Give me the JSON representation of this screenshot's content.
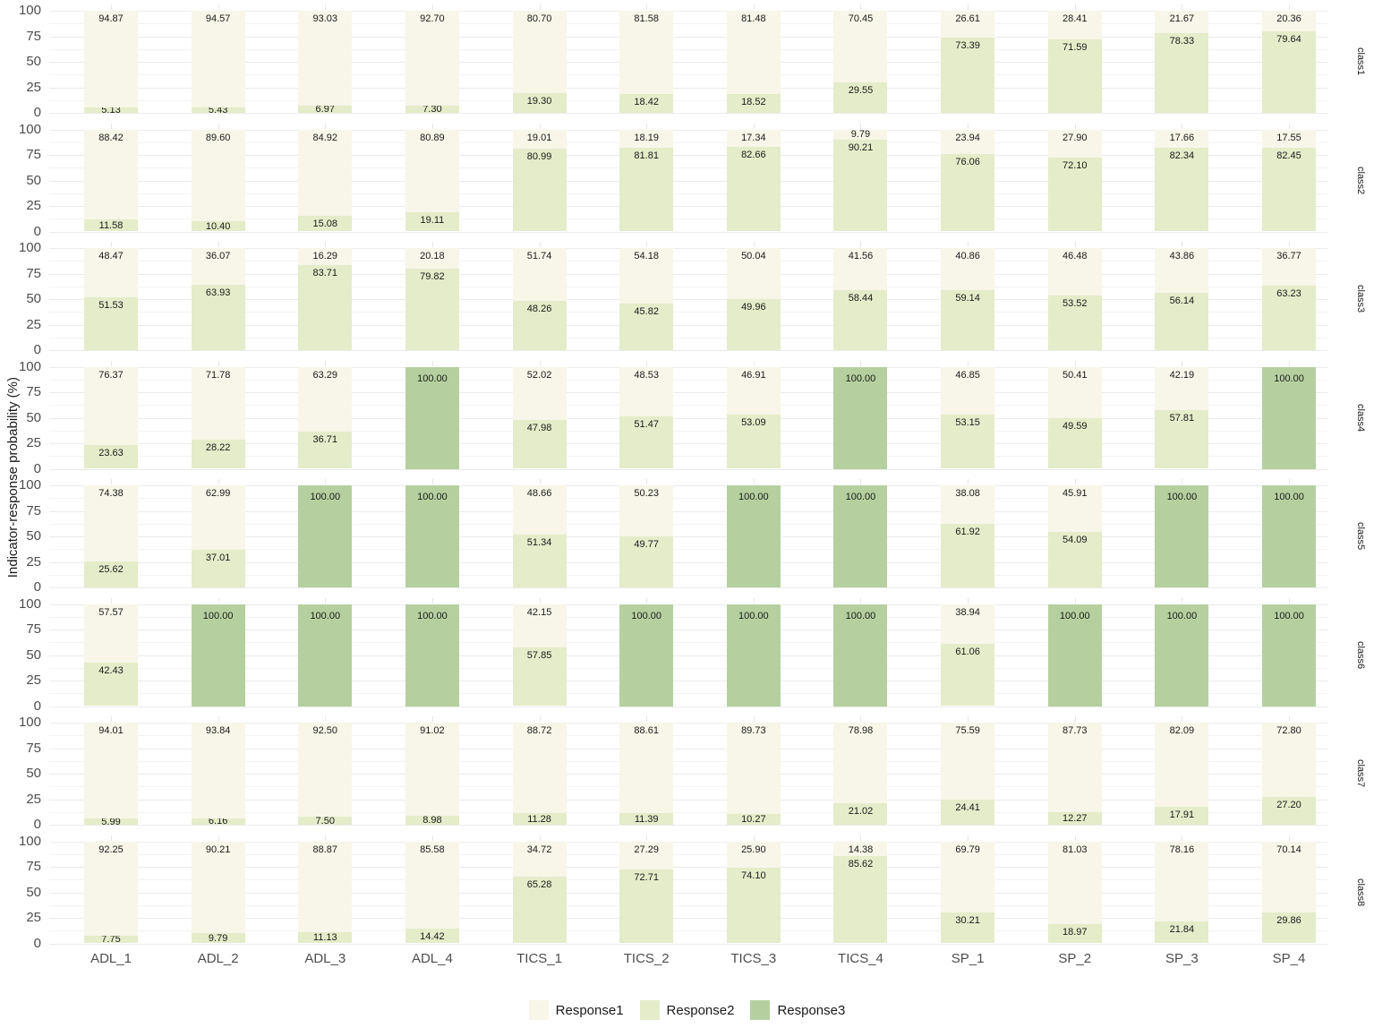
{
  "chart_data": {
    "type": "bar",
    "subtype": "stacked-100-faceted",
    "title": "",
    "xlabel": "",
    "ylabel": "Indicator-response probability (%)",
    "ylim": [
      0,
      100
    ],
    "yticks": [
      0,
      25,
      50,
      75,
      100
    ],
    "grid": true,
    "legend_position": "bottom",
    "categories": [
      "ADL_1",
      "ADL_2",
      "ADL_3",
      "ADL_4",
      "TICS_1",
      "TICS_2",
      "TICS_3",
      "TICS_4",
      "SP_1",
      "SP_2",
      "SP_3",
      "SP_4"
    ],
    "legend": [
      {
        "name": "Response1",
        "color": "#f7f6e8"
      },
      {
        "name": "Response2",
        "color": "#e4ecc9"
      },
      {
        "name": "Response3",
        "color": "#b5d09e"
      }
    ],
    "facets": [
      {
        "label": "class1",
        "Response1": [
          94.87,
          94.57,
          93.03,
          92.7,
          80.7,
          81.58,
          81.48,
          70.45,
          26.61,
          28.41,
          21.67,
          20.36
        ],
        "Response2": [
          5.13,
          5.43,
          6.97,
          7.3,
          19.3,
          18.42,
          18.52,
          29.55,
          73.39,
          71.59,
          78.33,
          79.64
        ],
        "Response3": [
          0,
          0,
          0,
          0,
          0,
          0,
          0,
          0,
          0,
          0,
          0,
          0
        ]
      },
      {
        "label": "class2",
        "Response1": [
          88.42,
          89.6,
          84.92,
          80.89,
          19.01,
          18.19,
          17.34,
          9.79,
          23.94,
          27.9,
          17.66,
          17.55
        ],
        "Response2": [
          11.58,
          10.4,
          15.08,
          19.11,
          80.99,
          81.81,
          82.66,
          90.21,
          76.06,
          72.1,
          82.34,
          82.45
        ],
        "Response3": [
          0,
          0,
          0,
          0,
          0,
          0,
          0,
          0,
          0,
          0,
          0,
          0
        ]
      },
      {
        "label": "class3",
        "Response1": [
          48.47,
          36.07,
          16.29,
          20.18,
          51.74,
          54.18,
          50.04,
          41.56,
          40.86,
          46.48,
          43.86,
          36.77
        ],
        "Response2": [
          51.53,
          63.93,
          83.71,
          79.82,
          48.26,
          45.82,
          49.96,
          58.44,
          59.14,
          53.52,
          56.14,
          63.23
        ],
        "Response3": [
          0,
          0,
          0,
          0,
          0,
          0,
          0,
          0,
          0,
          0,
          0,
          0
        ]
      },
      {
        "label": "class4",
        "Response1": [
          76.37,
          71.78,
          63.29,
          0,
          52.02,
          48.53,
          46.91,
          0,
          46.85,
          50.41,
          42.19,
          0
        ],
        "Response2": [
          23.63,
          28.22,
          36.71,
          0,
          47.98,
          51.47,
          53.09,
          0,
          53.15,
          49.59,
          57.81,
          0
        ],
        "Response3": [
          0,
          0,
          0,
          100.0,
          0,
          0,
          0,
          100.0,
          0,
          0,
          0,
          100.0
        ]
      },
      {
        "label": "class5",
        "Response1": [
          74.38,
          62.99,
          0,
          0,
          48.66,
          50.23,
          0,
          0,
          38.08,
          45.91,
          0,
          0
        ],
        "Response2": [
          25.62,
          37.01,
          0,
          0,
          51.34,
          49.77,
          0,
          0,
          61.92,
          54.09,
          0,
          0
        ],
        "Response3": [
          0,
          0,
          100.0,
          100.0,
          0,
          0,
          100.0,
          100.0,
          0,
          0,
          100.0,
          100.0
        ]
      },
      {
        "label": "class6",
        "Response1": [
          57.57,
          0,
          0,
          0,
          42.15,
          0,
          0,
          0,
          38.94,
          0,
          0,
          0
        ],
        "Response2": [
          42.43,
          0,
          0,
          0,
          57.85,
          0,
          0,
          0,
          61.06,
          0,
          0,
          0
        ],
        "Response3": [
          0,
          100.0,
          100.0,
          100.0,
          0,
          100.0,
          100.0,
          100.0,
          0,
          100.0,
          100.0,
          100.0
        ]
      },
      {
        "label": "class7",
        "Response1": [
          94.01,
          93.84,
          92.5,
          91.02,
          88.72,
          88.61,
          89.73,
          78.98,
          75.59,
          87.73,
          82.09,
          72.8
        ],
        "Response2": [
          5.99,
          6.16,
          7.5,
          8.98,
          11.28,
          11.39,
          10.27,
          21.02,
          24.41,
          12.27,
          17.91,
          27.2
        ],
        "Response3": [
          0,
          0,
          0,
          0,
          0,
          0,
          0,
          0,
          0,
          0,
          0,
          0
        ]
      },
      {
        "label": "class8",
        "Response1": [
          92.25,
          90.21,
          88.87,
          85.58,
          34.72,
          27.29,
          25.9,
          14.38,
          69.79,
          81.03,
          78.16,
          70.14
        ],
        "Response2": [
          7.75,
          9.79,
          11.13,
          14.42,
          65.28,
          72.71,
          74.1,
          85.62,
          30.21,
          18.97,
          21.84,
          29.86
        ],
        "Response3": [
          0,
          0,
          0,
          0,
          0,
          0,
          0,
          0,
          0,
          0,
          0,
          0
        ]
      }
    ]
  }
}
